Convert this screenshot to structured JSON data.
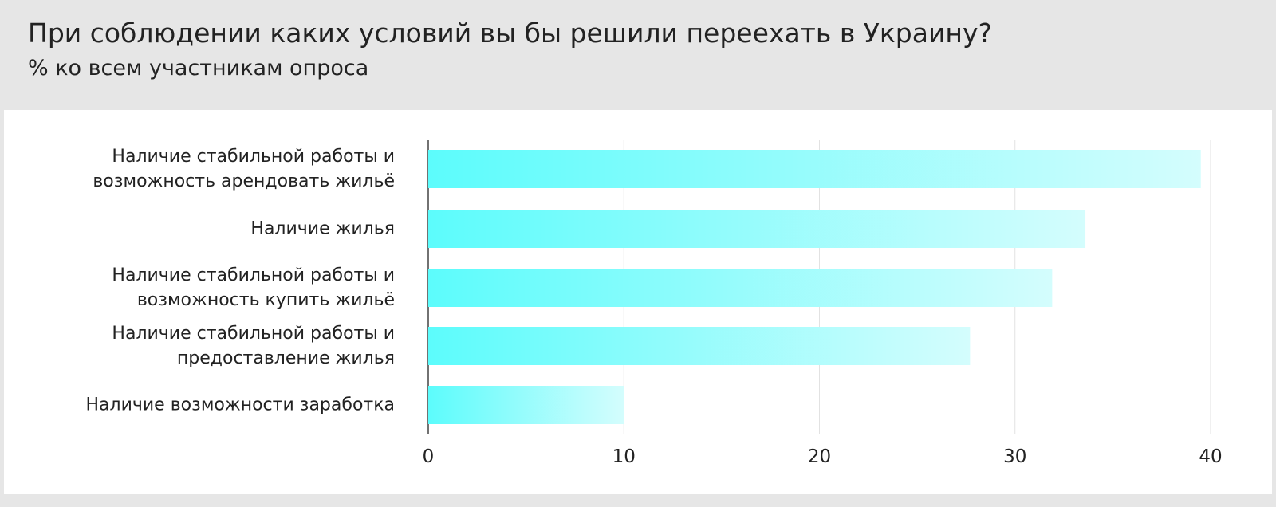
{
  "chart_data": {
    "type": "bar",
    "orientation": "horizontal",
    "title": "При соблюдении каких условий вы бы решили переехать в Украину?",
    "subtitle": "% ко всем участникам опроса",
    "categories": [
      "Наличие стабильной работы и\nвозможность арендовать жильё",
      "Наличие жилья",
      "Наличие стабильной работы и\nвозможность купить жильё",
      "Наличие стабильной работы и\nпредоставление жилья",
      "Наличие возможности заработка"
    ],
    "values": [
      39.5,
      33.6,
      31.9,
      27.7,
      10.0
    ],
    "color": "#5cfcfc",
    "xlim": [
      0,
      40
    ],
    "xticks": [
      0,
      10,
      20,
      30,
      40
    ],
    "grid": true
  }
}
